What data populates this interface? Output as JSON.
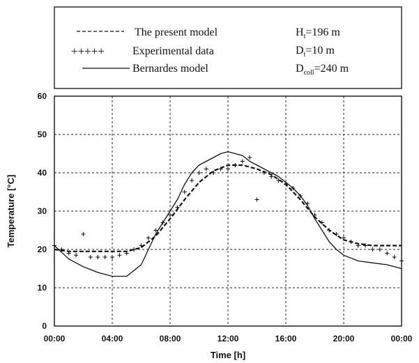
{
  "chart_data": {
    "type": "line",
    "title": "",
    "xlabel": "Time [h]",
    "ylabel": "Temperature [°C]",
    "xlim": [
      0,
      24
    ],
    "ylim": [
      0,
      60
    ],
    "x_ticks": [
      0,
      4,
      8,
      12,
      16,
      20,
      24
    ],
    "x_tick_labels": [
      "00:00",
      "04:00",
      "08:00",
      "12:00",
      "16:00",
      "20:00",
      "00:00"
    ],
    "y_ticks": [
      0,
      10,
      20,
      30,
      40,
      50,
      60
    ],
    "y_tick_labels": [
      "0",
      "10",
      "20",
      "30",
      "40",
      "50",
      "60"
    ],
    "grid": true,
    "legend_position": "top",
    "legend_entries": [
      {
        "key": "present",
        "label": "The present model",
        "style": "dashed"
      },
      {
        "key": "experimental",
        "label": "Experimental data",
        "style": "plus"
      },
      {
        "key": "bernardes",
        "label": "Bernardes model",
        "style": "solid"
      }
    ],
    "annotations": {
      "h_sub": "H",
      "h_idx": "t",
      "h_val": "=196 m",
      "d_sub": "D",
      "d_idx": "t",
      "d_val": "=10 m",
      "c_sub": "D",
      "c_idx": "coll",
      "c_val": "=240 m"
    },
    "series": [
      {
        "name": "The present model",
        "style": "dashed",
        "x": [
          0,
          1,
          2,
          3,
          4,
          5,
          6,
          7,
          8,
          9,
          10,
          11,
          12,
          13,
          14,
          15,
          16,
          17,
          18,
          19,
          20,
          21,
          22,
          23,
          24
        ],
        "y": [
          20,
          19.5,
          19.5,
          19.5,
          19.5,
          19.5,
          20.5,
          23.5,
          28,
          33,
          37.5,
          40.5,
          42,
          42,
          41,
          39.5,
          37,
          33,
          28.5,
          25,
          22.5,
          21.5,
          21,
          21,
          21
        ]
      },
      {
        "name": "Experimental data",
        "style": "plus",
        "x": [
          0,
          0.5,
          1,
          1.5,
          2,
          2.5,
          3,
          3.5,
          4,
          4.5,
          5,
          5.5,
          6,
          6.5,
          7,
          7.5,
          8,
          8.5,
          9,
          9.5,
          10,
          10.5,
          11,
          11.5,
          12,
          12.5,
          13,
          13.5,
          14,
          14.5,
          15,
          15.5,
          16,
          16.5,
          17,
          17.5,
          18,
          18.5,
          19,
          19.5,
          20,
          20.5,
          21,
          21.5,
          22,
          22.5,
          23,
          23.5,
          24
        ],
        "y": [
          21,
          20,
          19,
          18.5,
          24,
          18,
          18,
          18,
          18,
          18.5,
          19,
          20,
          21,
          23,
          25,
          27,
          29,
          31,
          35,
          38,
          40,
          41,
          40,
          41,
          41,
          42,
          43,
          44,
          33,
          40,
          39,
          38,
          37,
          36,
          34,
          32,
          29,
          27,
          25,
          24,
          23,
          22,
          21,
          21,
          20,
          20,
          19,
          18,
          17
        ]
      },
      {
        "name": "Bernardes model",
        "style": "solid",
        "x": [
          0,
          1,
          2,
          3,
          4,
          5,
          6,
          6.5,
          7,
          7.5,
          8,
          8.5,
          9,
          9.5,
          10,
          10.5,
          11,
          11.5,
          12,
          12.5,
          13,
          13.5,
          14,
          14.5,
          15,
          15.5,
          16,
          16.5,
          17,
          17.5,
          18,
          18.5,
          19,
          19.5,
          20,
          21,
          22,
          23,
          24
        ],
        "y": [
          21,
          17.5,
          15.5,
          14,
          13,
          13,
          16,
          20,
          24,
          27,
          30,
          33,
          37,
          40,
          42,
          43,
          44,
          45,
          45.5,
          45,
          44.5,
          43,
          42,
          41,
          40,
          39,
          37.5,
          36,
          34,
          31.5,
          28,
          25,
          22,
          20,
          18.5,
          17,
          16.5,
          16,
          15
        ]
      }
    ]
  }
}
